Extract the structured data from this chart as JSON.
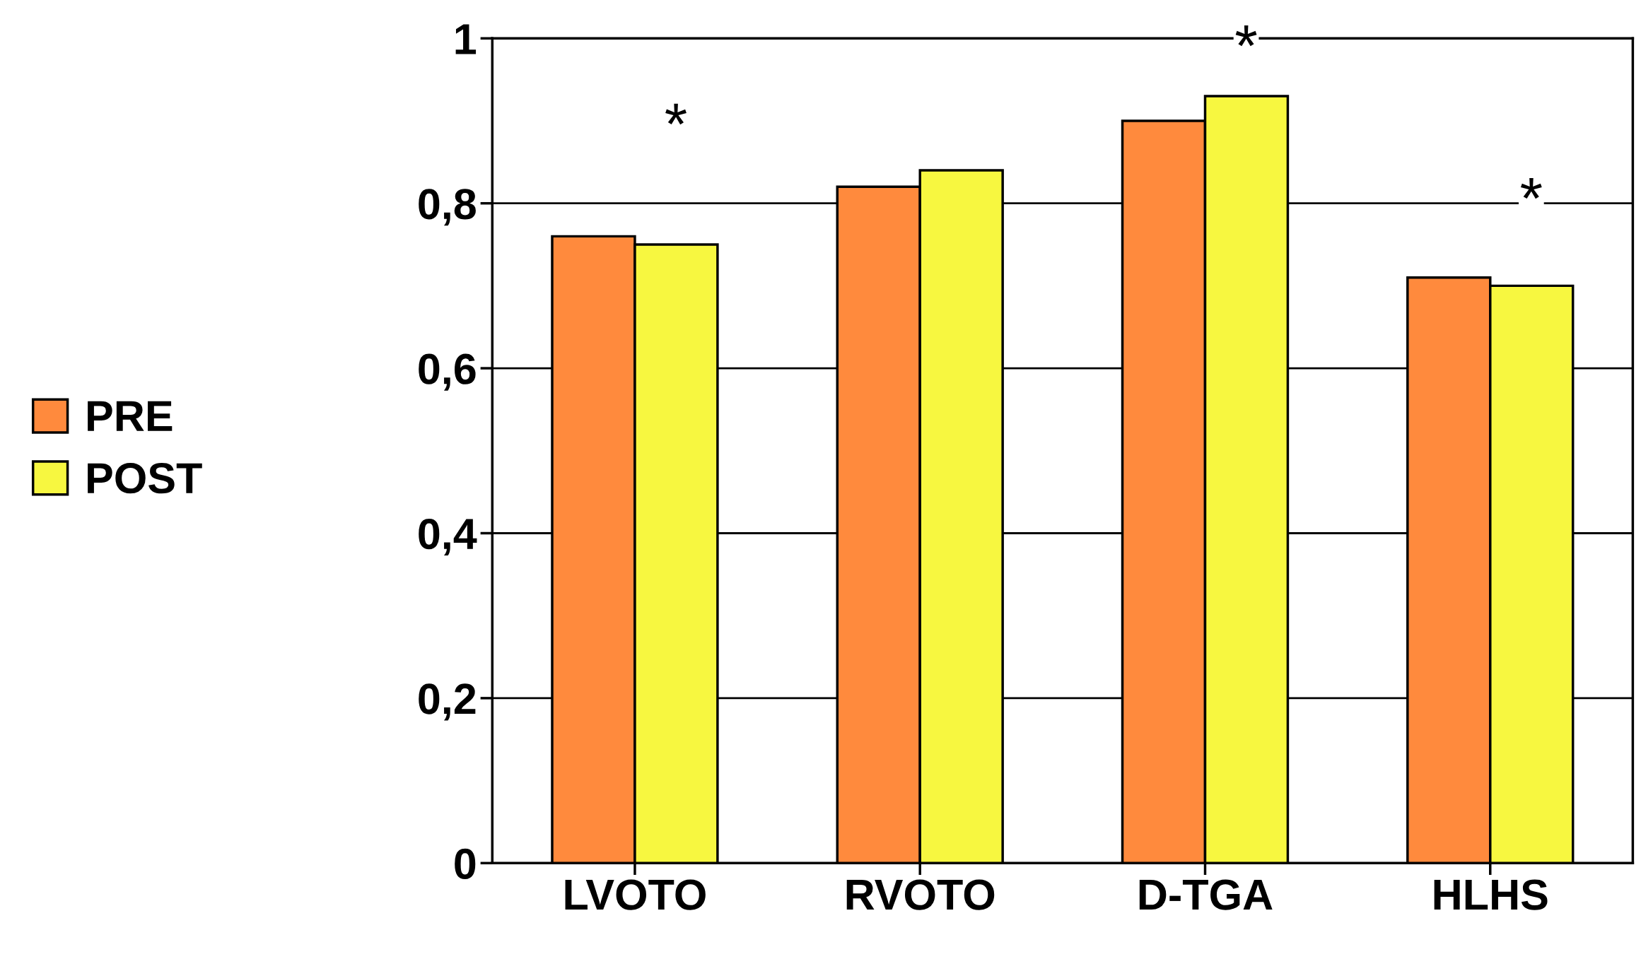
{
  "chart_data": {
    "type": "bar",
    "categories": [
      "LVOTO",
      "RVOTO",
      "D-TGA",
      "HLHS"
    ],
    "series": [
      {
        "name": "PRE",
        "color": "#ff8a3d",
        "values": [
          0.76,
          0.82,
          0.9,
          0.71
        ]
      },
      {
        "name": "POST",
        "color": "#f7f740",
        "values": [
          0.75,
          0.84,
          0.93,
          0.7
        ]
      }
    ],
    "ylim": [
      0,
      1
    ],
    "yticks": [
      0,
      {
        "value": 0.2,
        "label": "0,2"
      },
      {
        "value": 0.4,
        "label": "0,4"
      },
      {
        "value": 0.6,
        "label": "0,6"
      },
      {
        "value": 0.8,
        "label": "0,8"
      },
      1
    ],
    "grid": "y",
    "legend": "left",
    "annotations": [
      "*",
      "*",
      "*"
    ]
  }
}
